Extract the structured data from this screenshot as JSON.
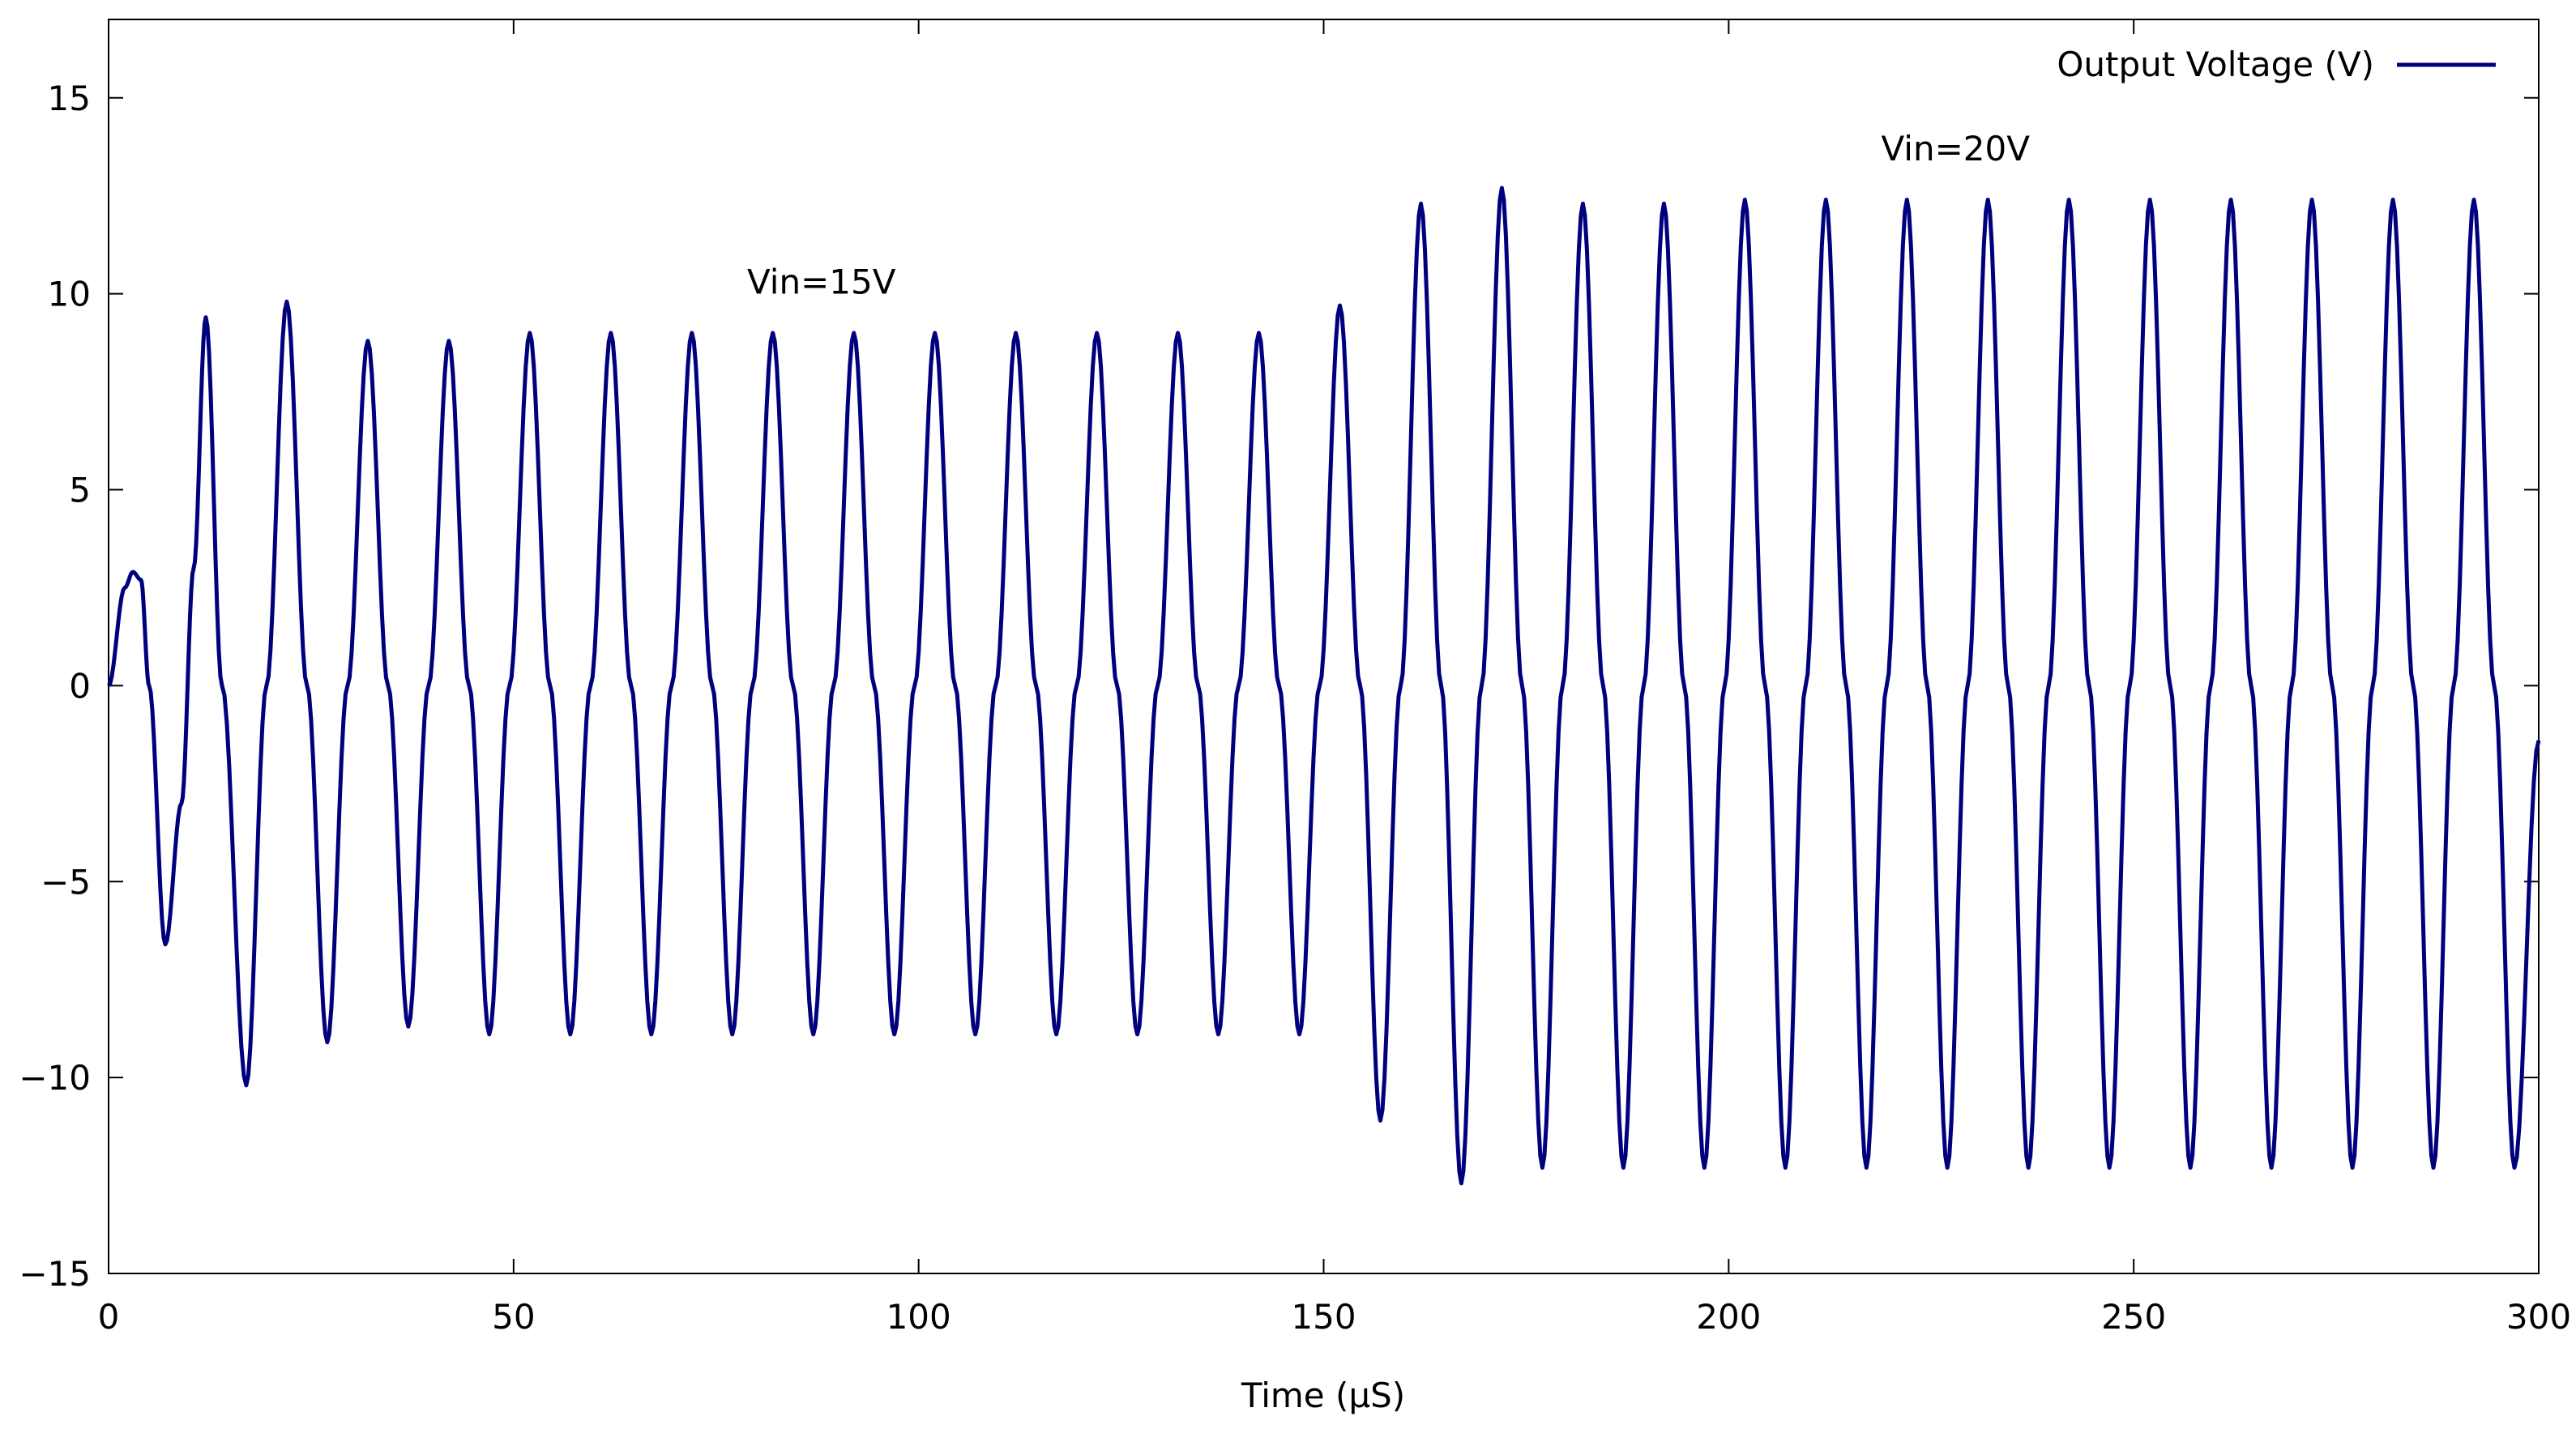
{
  "chart_data": {
    "type": "line",
    "title": "",
    "xlabel": "Time (μS)",
    "ylabel": "",
    "xlim": [
      0,
      300
    ],
    "ylim": [
      -15,
      17
    ],
    "grid": false,
    "legend_position": "top-right",
    "x_ticks": [
      0,
      50,
      100,
      150,
      200,
      250,
      300
    ],
    "x_tick_labels": [
      "0",
      "50",
      "100",
      "150",
      "200",
      "250",
      "300"
    ],
    "y_ticks": [
      -15,
      -10,
      -5,
      0,
      5,
      10,
      15
    ],
    "y_tick_labels": [
      "−15",
      "−10",
      "−5",
      "0",
      "5",
      "10",
      "15"
    ],
    "series": [
      {
        "name": "Output Voltage (V)",
        "color": "#00007f",
        "x": [
          0,
          2,
          3,
          4,
          5,
          7,
          9,
          10.5,
          12,
          14,
          17,
          19.5,
          22,
          24.5,
          27,
          29.5,
          32,
          34.5,
          37,
          39.5,
          42,
          44.5,
          47,
          49.5,
          52,
          54.5,
          57,
          59.5,
          62,
          64.5,
          67,
          69.5,
          72,
          74.5,
          77,
          79.5,
          82,
          84.5,
          87,
          89.5,
          92,
          94.5,
          97,
          99.5,
          102,
          104.5,
          107,
          109.5,
          112,
          114.5,
          117,
          119.5,
          122,
          124.5,
          127,
          129.5,
          132,
          134.5,
          137,
          139.5,
          142,
          144.5,
          147,
          149.5,
          152,
          154.5,
          157,
          159.5,
          162,
          164.5,
          167,
          169.5,
          172,
          174.5,
          177,
          179.5,
          182,
          184.5,
          187,
          189.5,
          192,
          194.5,
          197,
          199.5,
          202,
          204.5,
          207,
          209.5,
          212,
          214.5,
          217,
          219.5,
          222,
          224.5,
          227,
          229.5,
          232,
          234.5,
          237,
          239.5,
          242,
          244.5,
          247,
          249.5,
          252,
          254.5,
          257,
          259.5,
          262,
          264.5,
          267,
          269.5,
          272,
          274.5,
          277,
          279.5,
          282,
          284.5,
          287,
          289.5,
          292,
          294.5,
          297,
          300
        ],
        "y": [
          0,
          2.5,
          2.9,
          2.7,
          0,
          -6.6,
          -3,
          3,
          9.4,
          0,
          -10.2,
          0,
          9.8,
          0,
          -9.1,
          0,
          8.8,
          0,
          -8.7,
          0,
          8.8,
          0,
          -8.9,
          0,
          9.0,
          0,
          -8.9,
          0,
          9.0,
          0,
          -8.9,
          0,
          9.0,
          0,
          -8.9,
          0,
          9.0,
          0,
          -8.9,
          0,
          9.0,
          0,
          -8.9,
          0,
          9.0,
          0,
          -8.9,
          0,
          9.0,
          0,
          -8.9,
          0,
          9.0,
          0,
          -8.9,
          0,
          9.0,
          0,
          -8.9,
          0,
          9.0,
          0,
          -8.9,
          0,
          9.7,
          0,
          -11.1,
          0,
          12.3,
          0,
          -12.7,
          0,
          12.7,
          0,
          -12.3,
          0,
          12.3,
          0,
          -12.3,
          0,
          12.3,
          0,
          -12.3,
          0,
          12.4,
          0,
          -12.3,
          0,
          12.4,
          0,
          -12.3,
          0,
          12.4,
          0,
          -12.3,
          0,
          12.4,
          0,
          -12.3,
          0,
          12.4,
          0,
          -12.3,
          0,
          12.4,
          0,
          -12.3,
          0,
          12.4,
          0,
          -12.3,
          0,
          12.4,
          0,
          -12.3,
          0,
          12.4,
          0,
          -12.3,
          0,
          12.4,
          0,
          -12.3,
          -1.4
        ]
      }
    ],
    "annotations": [
      {
        "text": "Vin=15V",
        "x": 88,
        "y": 10
      },
      {
        "text": "Vin=20V",
        "x": 228,
        "y": 13.4
      }
    ]
  }
}
